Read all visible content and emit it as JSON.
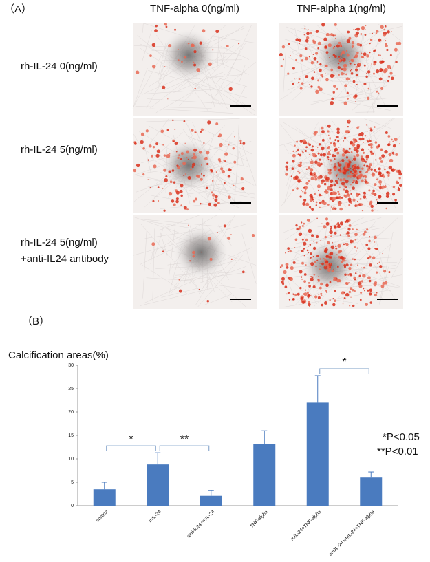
{
  "panel_a": {
    "label": "（A）",
    "columns": [
      "TNF-alpha  0(ng/ml)",
      "TNF-alpha  1(ng/ml)"
    ],
    "rows": [
      [
        "rh-IL-24  0(ng/ml)"
      ],
      [
        "rh-IL-24  5(ng/ml)"
      ],
      [
        "rh-IL-24  5(ng/ml)",
        "+anti-IL24 antibody"
      ]
    ]
  },
  "panel_b_label": "（B）",
  "chart_data": {
    "type": "bar",
    "title": "Calcification areas(%)",
    "categories": [
      "control",
      "rhIL-24",
      "anti-IL24+rhIL-24",
      "TNF-alpha",
      "rhIL-24+TNF-alpha",
      "antiIL-24+rhIL-24+TNF-alpha"
    ],
    "values": [
      3.5,
      8.8,
      2.1,
      13.2,
      22.0,
      6.0
    ],
    "errors": [
      1.5,
      2.5,
      1.1,
      2.8,
      5.8,
      1.2
    ],
    "color": "#4a7bbf",
    "ylim": [
      0,
      30
    ],
    "yticks": [
      0,
      5,
      10,
      15,
      20,
      25,
      30
    ],
    "grid": false,
    "annotations": [
      {
        "text": "*",
        "between": [
          "control",
          "rhIL-24"
        ]
      },
      {
        "text": "**",
        "between": [
          "rhIL-24",
          "anti-IL24+rhIL-24"
        ]
      },
      {
        "text": "*",
        "between": [
          "rhIL-24+TNF-alpha",
          "antiIL-24+rhIL-24+TNF-alpha"
        ]
      }
    ],
    "notes": [
      "*P<0.05",
      "**P<0.01"
    ]
  }
}
